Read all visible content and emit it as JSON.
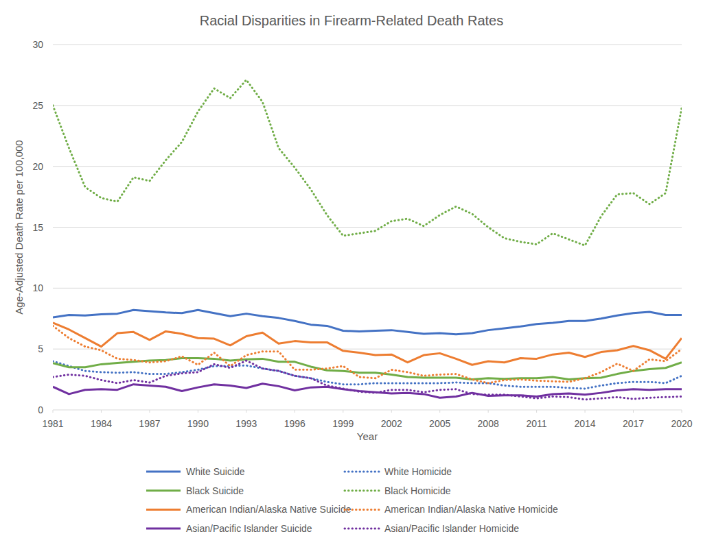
{
  "chart_data": {
    "type": "line",
    "title": "Racial Disparities in Firearm-Related Death Rates",
    "x_label": "Year",
    "y_label": "Age-Adjusted Death Rate per 100,000",
    "x": [
      1981,
      1982,
      1983,
      1984,
      1985,
      1986,
      1987,
      1988,
      1989,
      1990,
      1991,
      1992,
      1993,
      1994,
      1995,
      1996,
      1997,
      1998,
      1999,
      2000,
      2001,
      2002,
      2003,
      2004,
      2005,
      2006,
      2007,
      2008,
      2009,
      2010,
      2011,
      2012,
      2013,
      2014,
      2015,
      2016,
      2017,
      2018,
      2019,
      2020
    ],
    "xlim": [
      1981,
      2020
    ],
    "xticks": [
      1981,
      1984,
      1987,
      1990,
      1993,
      1996,
      1999,
      2002,
      2005,
      2008,
      2011,
      2014,
      2017,
      2020
    ],
    "ylim": [
      0,
      30
    ],
    "yticks": [
      0,
      5,
      10,
      15,
      20,
      25,
      30
    ],
    "grid": true,
    "legend": "bottom",
    "series": [
      {
        "name": "White Suicide",
        "color": "#4472c4",
        "line_style": "solid",
        "values": [
          7.6,
          7.8,
          7.75,
          7.85,
          7.9,
          8.2,
          8.1,
          8.0,
          7.95,
          8.2,
          7.95,
          7.7,
          7.9,
          7.7,
          7.55,
          7.3,
          7.0,
          6.9,
          6.5,
          6.45,
          6.5,
          6.55,
          6.4,
          6.25,
          6.3,
          6.2,
          6.3,
          6.55,
          6.7,
          6.85,
          7.05,
          7.15,
          7.3,
          7.3,
          7.5,
          7.75,
          7.95,
          8.05,
          7.8,
          7.8
        ]
      },
      {
        "name": "White Homicide",
        "color": "#4472c4",
        "line_style": "dotted",
        "values": [
          4.0,
          3.6,
          3.2,
          3.1,
          3.05,
          3.1,
          2.95,
          2.95,
          3.1,
          3.3,
          3.6,
          3.6,
          3.65,
          3.4,
          3.2,
          2.8,
          2.6,
          2.3,
          2.1,
          2.1,
          2.2,
          2.2,
          2.2,
          2.2,
          2.2,
          2.25,
          2.2,
          2.2,
          2.0,
          1.9,
          1.9,
          1.9,
          1.8,
          1.75,
          2.0,
          2.2,
          2.3,
          2.3,
          2.2,
          2.8
        ]
      },
      {
        "name": "Black Suicide",
        "color": "#70ad47",
        "line_style": "solid",
        "values": [
          3.85,
          3.5,
          3.5,
          3.75,
          3.85,
          3.95,
          4.05,
          4.1,
          4.25,
          4.25,
          4.2,
          4.05,
          4.15,
          4.2,
          3.95,
          3.95,
          3.55,
          3.25,
          3.2,
          3.05,
          3.05,
          2.9,
          2.7,
          2.65,
          2.65,
          2.65,
          2.5,
          2.6,
          2.55,
          2.6,
          2.6,
          2.7,
          2.5,
          2.6,
          2.65,
          2.95,
          3.2,
          3.35,
          3.45,
          3.9
        ]
      },
      {
        "name": "Black Homicide",
        "color": "#70ad47",
        "line_style": "dotted",
        "values": [
          25,
          21.5,
          18.3,
          17.4,
          17.1,
          19.1,
          18.8,
          20.5,
          22,
          24.5,
          26.4,
          25.6,
          27.1,
          25.3,
          21.5,
          19.9,
          18.1,
          16,
          14.3,
          14.5,
          14.7,
          15.5,
          15.7,
          15.1,
          16,
          16.7,
          16.1,
          15,
          14.1,
          13.8,
          13.6,
          14.5,
          14,
          13.5,
          15.9,
          17.7,
          17.8,
          16.9,
          17.8,
          24.8
        ]
      },
      {
        "name": "American Indian/Alaska Native Suicide",
        "color": "#ed7d31",
        "line_style": "solid",
        "values": [
          7.15,
          6.6,
          5.9,
          5.2,
          6.3,
          6.4,
          5.75,
          6.45,
          6.25,
          5.9,
          5.85,
          5.3,
          6.05,
          6.35,
          5.45,
          5.65,
          5.55,
          5.55,
          4.85,
          4.7,
          4.5,
          4.55,
          3.9,
          4.5,
          4.65,
          4.2,
          3.7,
          4.0,
          3.9,
          4.25,
          4.2,
          4.55,
          4.7,
          4.35,
          4.75,
          4.9,
          5.25,
          4.9,
          4.2,
          5.9
        ]
      },
      {
        "name": "American Indian/Alaska Native Homicide",
        "color": "#ed7d31",
        "line_style": "dotted",
        "values": [
          6.9,
          5.9,
          5.2,
          4.9,
          4.2,
          4.1,
          3.9,
          4.0,
          4.4,
          3.7,
          4.7,
          3.6,
          4.5,
          4.8,
          4.8,
          3.3,
          3.3,
          3.4,
          3.6,
          2.7,
          2.6,
          3.3,
          3.1,
          2.8,
          2.9,
          2.95,
          2.5,
          2.2,
          2.45,
          2.5,
          2.4,
          2.35,
          2.3,
          2.6,
          3.1,
          3.8,
          3.2,
          4.15,
          4.0,
          5.0
        ]
      },
      {
        "name": "Asian/Pacific Islander Suicide",
        "color": "#7030a0",
        "line_style": "solid",
        "values": [
          1.9,
          1.3,
          1.65,
          1.7,
          1.65,
          2.1,
          2.0,
          1.9,
          1.55,
          1.85,
          2.1,
          2.0,
          1.8,
          2.15,
          1.95,
          1.6,
          1.85,
          1.9,
          1.7,
          1.55,
          1.45,
          1.35,
          1.4,
          1.3,
          1.0,
          1.1,
          1.4,
          1.15,
          1.2,
          1.2,
          1.1,
          1.3,
          1.35,
          1.25,
          1.4,
          1.6,
          1.7,
          1.65,
          1.7,
          1.7
        ]
      },
      {
        "name": "Asian/Pacific Islander Homicide",
        "color": "#7030a0",
        "line_style": "dotted",
        "values": [
          2.7,
          2.9,
          2.8,
          2.45,
          2.2,
          2.45,
          2.25,
          2.8,
          3.0,
          3.1,
          3.75,
          3.45,
          4.05,
          3.4,
          3.2,
          2.8,
          2.6,
          2.0,
          1.75,
          1.5,
          1.4,
          1.65,
          1.65,
          1.45,
          1.65,
          1.7,
          1.3,
          1.25,
          1.25,
          1.1,
          0.95,
          1.1,
          1.05,
          0.85,
          0.95,
          1.05,
          0.9,
          1.0,
          1.05,
          1.1
        ]
      }
    ]
  }
}
